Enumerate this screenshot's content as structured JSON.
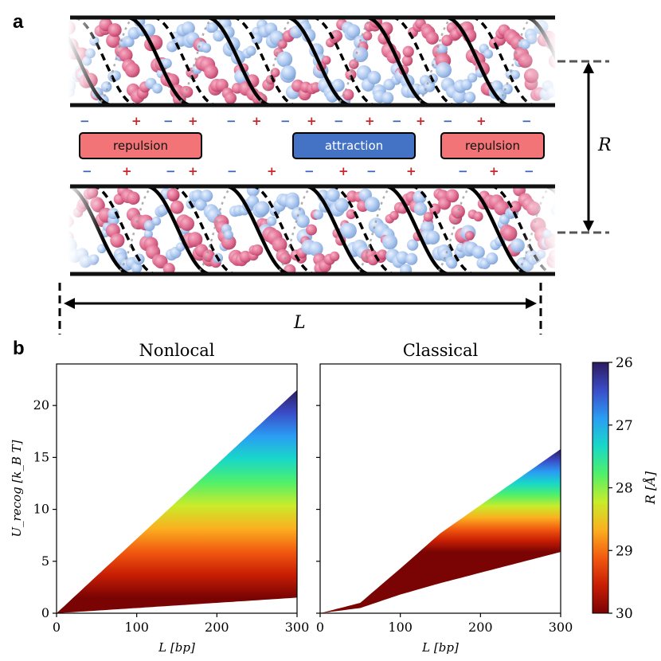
{
  "panel_a": {
    "label": "a",
    "top_charges": [
      "−",
      "+",
      "−",
      "+",
      "−",
      "+",
      "−",
      "+",
      "−",
      "+",
      "−",
      "+",
      "−",
      "+",
      "−"
    ],
    "bottom_charges": [
      "−",
      "+",
      "−",
      "+",
      "−",
      "+",
      "−",
      "+",
      "−",
      "+",
      "−",
      "+",
      "−"
    ],
    "region_labels": {
      "left": "repulsion",
      "middle": "attraction",
      "right": "repulsion"
    },
    "distance_label": "R",
    "length_label": "L"
  },
  "panel_b": {
    "label": "b",
    "colorbar": {
      "label": "R [Å]",
      "ticks": [
        "26",
        "27",
        "28",
        "29",
        "30"
      ],
      "colors_top_to_bottom": [
        "#2c1b5e",
        "#3a4dc8",
        "#2a9df4",
        "#18d8c8",
        "#4ff06a",
        "#c8ec2a",
        "#fbb020",
        "#f25a10",
        "#c81e04",
        "#7a0403"
      ]
    }
  },
  "chart_data": [
    {
      "type": "area",
      "title": "Nonlocal",
      "xlabel": "L [bp]",
      "ylabel": "U_recog [k_B T]",
      "xlim": [
        0,
        300
      ],
      "ylim": [
        0,
        24
      ],
      "xticks": [
        "0",
        "100",
        "200",
        "300"
      ],
      "yticks": [
        "0",
        "5",
        "10",
        "15",
        "20"
      ],
      "series": [
        {
          "name": "R = 26 Å",
          "x": [
            0,
            300
          ],
          "y": [
            0,
            21.5
          ]
        },
        {
          "name": "R = 30 Å",
          "x": [
            0,
            300
          ],
          "y": [
            0,
            1.5
          ]
        }
      ]
    },
    {
      "type": "area",
      "title": "Classical",
      "xlabel": "L [bp]",
      "ylabel": "",
      "xlim": [
        0,
        300
      ],
      "ylim": [
        0,
        24
      ],
      "xticks": [
        "0",
        "100",
        "200",
        "300"
      ],
      "yticks": [
        "0",
        "5",
        "10",
        "15",
        "20"
      ],
      "series": [
        {
          "name": "R = 26 Å",
          "x": [
            0,
            50,
            100,
            150,
            200,
            250,
            300
          ],
          "y": [
            0,
            1.0,
            4.3,
            7.7,
            10.4,
            13.1,
            15.8
          ]
        },
        {
          "name": "R = 30 Å",
          "x": [
            0,
            50,
            100,
            150,
            200,
            250,
            300
          ],
          "y": [
            0,
            0.5,
            1.8,
            2.9,
            3.9,
            4.9,
            5.9
          ]
        }
      ]
    }
  ]
}
